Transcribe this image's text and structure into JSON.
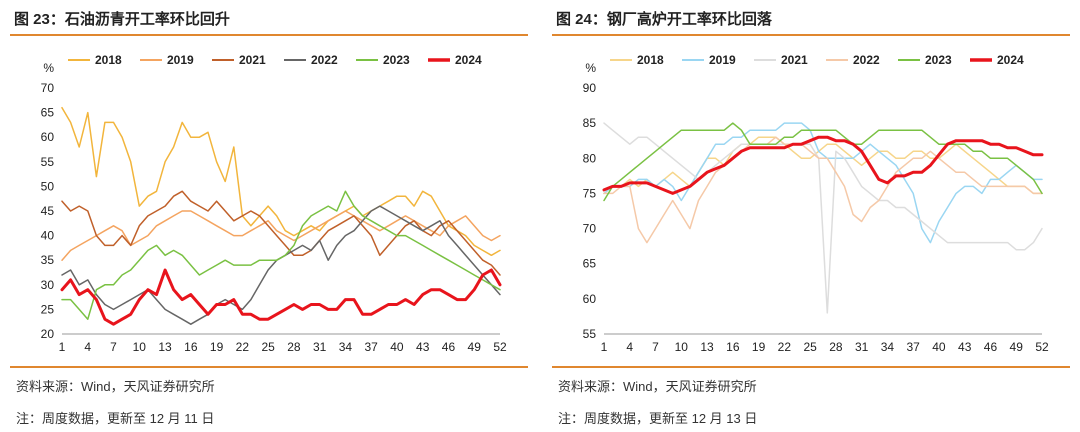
{
  "charts": [
    {
      "title": "图 23：石油沥青开工率环比回升",
      "source": "资料来源：Wind，天风证券研究所",
      "note": "注：周度数据，更新至 12 月 11 日"
    },
    {
      "title": "图 24：钢厂高炉开工率环比回落",
      "source": "资料来源：Wind，天风证券研究所",
      "note": "注：周度数据，更新至 12 月 13 日"
    }
  ],
  "chart_data": [
    {
      "type": "line",
      "unit": "%",
      "ylim": [
        20,
        70
      ],
      "yticks": [
        20,
        25,
        30,
        35,
        40,
        45,
        50,
        55,
        60,
        65,
        70
      ],
      "xlim": [
        1,
        52
      ],
      "xticks": [
        1,
        4,
        7,
        10,
        13,
        16,
        19,
        22,
        25,
        28,
        31,
        34,
        37,
        40,
        43,
        46,
        49,
        52
      ],
      "legend_position": "top",
      "series": [
        {
          "name": "2018",
          "color": "#f2b53c",
          "width": 1.5,
          "values": [
            66,
            63,
            58,
            65,
            52,
            63,
            63,
            60,
            55,
            46,
            48,
            49,
            55,
            58,
            63,
            60,
            60,
            61,
            55,
            51,
            58,
            44,
            42,
            44,
            46,
            44,
            41,
            40,
            41,
            42,
            41,
            43,
            44,
            45,
            46,
            44,
            45,
            46,
            47,
            48,
            48,
            46,
            49,
            48,
            45,
            42,
            41,
            40,
            38,
            37,
            36,
            37
          ]
        },
        {
          "name": "2019",
          "color": "#f4a460",
          "width": 1.5,
          "values": [
            35,
            37,
            38,
            39,
            40,
            41,
            42,
            41,
            38,
            39,
            40,
            42,
            43,
            44,
            45,
            45,
            44,
            43,
            42,
            41,
            40,
            40,
            41,
            42,
            43,
            41,
            40,
            39,
            40,
            41,
            42,
            43,
            44,
            45,
            44,
            43,
            42,
            41,
            42,
            43,
            44,
            43,
            42,
            41,
            40,
            42,
            43,
            44,
            42,
            40,
            39,
            40
          ]
        },
        {
          "name": "2021",
          "color": "#c0602a",
          "width": 1.5,
          "values": [
            47,
            45,
            46,
            45,
            40,
            38,
            38,
            40,
            38,
            42,
            44,
            45,
            46,
            48,
            49,
            47,
            46,
            45,
            47,
            45,
            43,
            44,
            45,
            44,
            42,
            40,
            38,
            36,
            36,
            37,
            39,
            41,
            42,
            43,
            44,
            42,
            40,
            36,
            38,
            40,
            42,
            43,
            41,
            40,
            42,
            43,
            41,
            39,
            37,
            35,
            34,
            32
          ]
        },
        {
          "name": "2022",
          "color": "#666666",
          "width": 1.5,
          "values": [
            32,
            33,
            30,
            31,
            28,
            26,
            25,
            26,
            27,
            28,
            29,
            27,
            25,
            24,
            23,
            22,
            23,
            24,
            26,
            27,
            26,
            25,
            27,
            30,
            33,
            35,
            36,
            37,
            38,
            37,
            39,
            35,
            38,
            40,
            41,
            43,
            45,
            46,
            45,
            44,
            43,
            42,
            41,
            42,
            43,
            40,
            38,
            36,
            34,
            32,
            30,
            28
          ]
        },
        {
          "name": "2023",
          "color": "#7ac143",
          "width": 1.5,
          "values": [
            27,
            27,
            25,
            23,
            29,
            30,
            30,
            32,
            33,
            35,
            37,
            38,
            36,
            37,
            36,
            34,
            32,
            33,
            34,
            35,
            34,
            34,
            34,
            35,
            35,
            35,
            36,
            38,
            42,
            44,
            45,
            46,
            45,
            49,
            46,
            44,
            43,
            42,
            41,
            40,
            40,
            39,
            38,
            37,
            36,
            35,
            34,
            33,
            32,
            31,
            30,
            29
          ]
        },
        {
          "name": "2024",
          "color": "#e8141c",
          "width": 3,
          "values": [
            29,
            31,
            28,
            29,
            27,
            23,
            22,
            23,
            24,
            27,
            29,
            28,
            33,
            29,
            27,
            28,
            26,
            24,
            26,
            26,
            27,
            24,
            24,
            23,
            23,
            24,
            25,
            26,
            25,
            26,
            26,
            25,
            25,
            27,
            27,
            24,
            24,
            25,
            26,
            26,
            27,
            26,
            28,
            29,
            29,
            28,
            27,
            27,
            29,
            32,
            33,
            30
          ]
        }
      ]
    },
    {
      "type": "line",
      "unit": "%",
      "ylim": [
        55,
        90
      ],
      "yticks": [
        55,
        60,
        65,
        70,
        75,
        80,
        85,
        90
      ],
      "xlim": [
        1,
        52
      ],
      "xticks": [
        1,
        4,
        7,
        10,
        13,
        16,
        19,
        22,
        25,
        28,
        31,
        34,
        37,
        40,
        43,
        46,
        49,
        52
      ],
      "legend_position": "top",
      "series": [
        {
          "name": "2018",
          "color": "#f6d58a",
          "width": 1.5,
          "values": [
            75,
            76,
            76,
            77,
            76,
            77,
            76,
            77,
            78,
            77,
            76,
            78,
            80,
            80,
            79,
            81,
            82,
            82,
            83,
            83,
            83,
            82,
            81,
            80,
            80,
            81,
            82,
            82,
            81,
            80,
            79,
            80,
            81,
            81,
            80,
            80,
            81,
            81,
            80,
            80,
            81,
            82,
            81,
            80,
            79,
            78,
            77,
            76,
            76,
            76,
            75,
            75
          ]
        },
        {
          "name": "2019",
          "color": "#9ad6f2",
          "width": 1.5,
          "values": [
            75,
            76,
            76,
            76,
            77,
            77,
            76,
            77,
            76,
            74,
            76,
            78,
            80,
            82,
            82,
            83,
            83,
            84,
            84,
            84,
            84,
            85,
            85,
            85,
            84,
            81,
            80,
            80,
            80,
            80,
            81,
            82,
            81,
            80,
            79,
            77,
            75,
            70,
            68,
            71,
            73,
            75,
            76,
            76,
            75,
            77,
            77,
            78,
            79,
            78,
            77,
            77
          ]
        },
        {
          "name": "2021",
          "color": "#dddddd",
          "width": 1.5,
          "values": [
            85,
            84,
            83,
            82,
            83,
            83,
            82,
            81,
            80,
            79,
            78,
            77,
            78,
            79,
            80,
            81,
            82,
            82,
            82,
            82,
            82,
            82,
            82,
            82,
            82,
            80,
            58,
            81,
            80,
            78,
            76,
            75,
            74,
            74,
            73,
            73,
            72,
            71,
            70,
            69,
            68,
            68,
            68,
            68,
            68,
            68,
            68,
            68,
            67,
            67,
            68,
            70
          ]
        },
        {
          "name": "2022",
          "color": "#f5c9a8",
          "width": 1.5,
          "values": [
            75,
            75,
            76,
            76,
            70,
            68,
            70,
            72,
            74,
            72,
            70,
            74,
            76,
            78,
            79,
            80,
            81,
            82,
            82,
            82,
            83,
            82,
            82,
            82,
            81,
            80,
            80,
            78,
            76,
            72,
            71,
            73,
            74,
            76,
            78,
            79,
            80,
            80,
            81,
            80,
            79,
            78,
            78,
            77,
            76,
            76,
            76,
            76,
            76,
            76,
            75,
            75
          ]
        },
        {
          "name": "2023",
          "color": "#7ac143",
          "width": 1.5,
          "values": [
            74,
            76,
            77,
            78,
            79,
            80,
            81,
            82,
            83,
            84,
            84,
            84,
            84,
            84,
            84,
            85,
            84,
            82,
            82,
            82,
            82,
            83,
            83,
            84,
            84,
            84,
            84,
            84,
            83,
            82,
            82,
            83,
            84,
            84,
            84,
            84,
            84,
            84,
            83,
            82,
            82,
            82,
            82,
            81,
            81,
            80,
            80,
            80,
            79,
            78,
            77,
            75
          ]
        },
        {
          "name": "2024",
          "color": "#e8141c",
          "width": 3,
          "values": [
            75.5,
            76,
            76,
            76.5,
            76.5,
            76.5,
            76,
            75.5,
            75,
            75.5,
            76,
            77,
            78,
            78.5,
            79,
            80,
            81,
            81.5,
            81.5,
            81.5,
            81.5,
            81.5,
            82,
            82,
            82.5,
            83,
            83,
            82.5,
            82.5,
            82,
            81,
            79,
            77,
            76.5,
            77.5,
            77.5,
            78,
            78,
            79,
            80.5,
            82,
            82.5,
            82.5,
            82.5,
            82.5,
            82,
            82,
            81.5,
            81.5,
            81,
            80.5,
            80.5
          ]
        }
      ]
    }
  ]
}
